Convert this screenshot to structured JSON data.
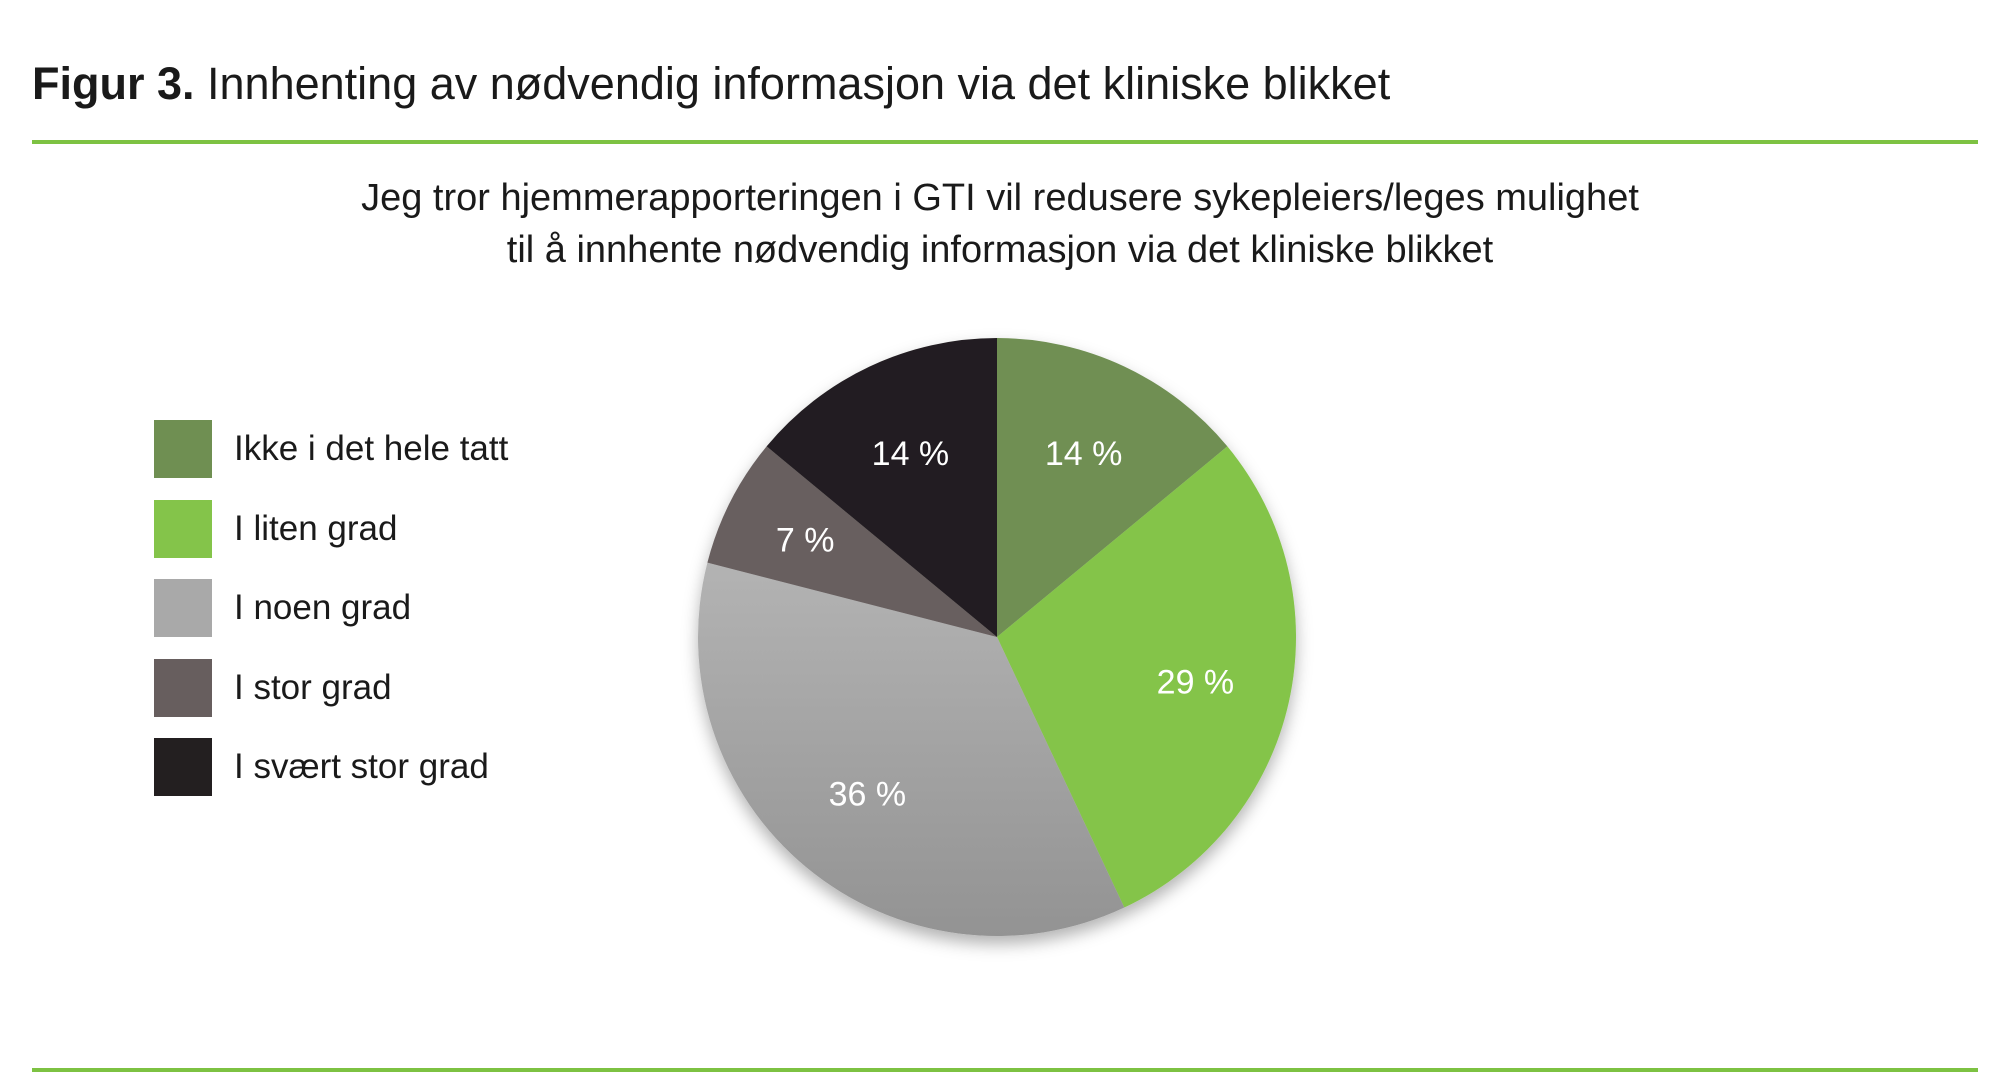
{
  "figure": {
    "label": "Figur 3.",
    "title": "Innhenting av nødvendig informasjon via det kliniske blikket"
  },
  "chart_data": {
    "type": "pie",
    "title_lines": [
      "Jeg tror hjemmerapporteringen i GTI vil redusere sykepleiers/leges mulighet",
      "til å innhente nødvendig informasjon via det kliniske blikket"
    ],
    "categories": [
      "Ikke i det hele tatt",
      "I liten grad",
      "I noen grad",
      "I stor grad",
      "I svært stor grad"
    ],
    "values": [
      14,
      29,
      36,
      7,
      14
    ],
    "data_labels": [
      "14 %",
      "29 %",
      "36 %",
      "7 %",
      "14 %"
    ],
    "colors": [
      "#6f8f52",
      "#84c44a",
      "#a9a9a9",
      "#675e5e",
      "#231f20"
    ],
    "legend_position": "left",
    "start": "top, clockwise"
  },
  "accent_color": "#7dc242"
}
